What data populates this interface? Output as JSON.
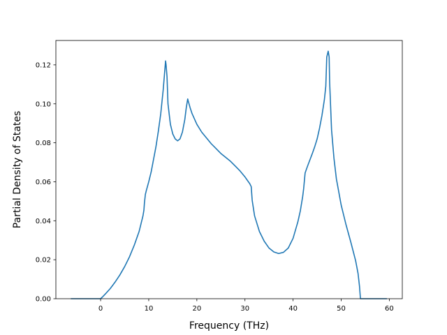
{
  "chart_data": {
    "type": "line",
    "title": "",
    "xlabel": "Frequency (THz)",
    "ylabel": "Partial Density of States",
    "xlim": [
      -9.3,
      62.7
    ],
    "ylim": [
      0.0,
      0.1325
    ],
    "xticks": [
      0,
      10,
      20,
      30,
      40,
      50,
      60
    ],
    "xtick_labels": [
      "0",
      "10",
      "20",
      "30",
      "40",
      "50",
      "60"
    ],
    "yticks": [
      0.0,
      0.02,
      0.04,
      0.06,
      0.08,
      0.1,
      0.12
    ],
    "ytick_labels": [
      "0.00",
      "0.02",
      "0.04",
      "0.06",
      "0.08",
      "0.10",
      "0.12"
    ],
    "grid": false,
    "line_color": "#1f77b4",
    "series": [
      {
        "x": [
          -6.2,
          -2.0,
          0.0,
          0.5,
          1.0,
          2.0,
          3.0,
          4.0,
          5.0,
          6.0,
          7.0,
          7.5,
          8.0,
          8.5,
          8.8,
          9.0,
          9.1,
          9.3,
          9.5,
          10.0,
          10.5,
          11.0,
          11.5,
          12.0,
          12.5,
          13.0,
          13.3,
          13.5,
          13.6,
          13.8,
          14.0,
          14.5,
          15.0,
          15.5,
          16.0,
          16.5,
          17.0,
          17.5,
          17.8,
          18.1,
          18.2,
          18.6,
          19.0,
          20.0,
          21.0,
          22.0,
          23.0,
          24.0,
          25.0,
          26.0,
          27.0,
          28.0,
          29.0,
          30.0,
          31.0,
          31.3,
          31.5,
          32.0,
          33.0,
          34.0,
          35.0,
          36.0,
          37.0,
          38.0,
          39.0,
          40.0,
          41.0,
          41.5,
          42.0,
          42.2,
          42.5,
          43.0,
          44.0,
          44.5,
          45.0,
          45.5,
          46.0,
          46.5,
          46.8,
          47.0,
          47.2,
          47.3,
          47.5,
          47.6,
          48.0,
          48.5,
          49.0,
          50.0,
          51.0,
          52.0,
          53.0,
          53.5,
          53.8,
          54.0,
          54.2,
          55.0,
          57.0,
          59.5
        ],
        "y": [
          0.0,
          0.0,
          0.0,
          0.0012,
          0.0025,
          0.0052,
          0.0085,
          0.0122,
          0.0165,
          0.0215,
          0.0275,
          0.031,
          0.0345,
          0.0395,
          0.0425,
          0.0455,
          0.049,
          0.0535,
          0.0555,
          0.06,
          0.065,
          0.0715,
          0.078,
          0.086,
          0.095,
          0.107,
          0.116,
          0.122,
          0.12,
          0.114,
          0.1,
          0.0895,
          0.0845,
          0.082,
          0.081,
          0.082,
          0.0855,
          0.092,
          0.098,
          0.1025,
          0.1015,
          0.098,
          0.095,
          0.0895,
          0.0855,
          0.0825,
          0.0795,
          0.077,
          0.0745,
          0.0725,
          0.0705,
          0.068,
          0.0655,
          0.0625,
          0.059,
          0.0575,
          0.0505,
          0.0425,
          0.0345,
          0.0295,
          0.026,
          0.024,
          0.0232,
          0.0238,
          0.026,
          0.031,
          0.0395,
          0.045,
          0.0525,
          0.0565,
          0.0645,
          0.068,
          0.0745,
          0.078,
          0.082,
          0.0875,
          0.094,
          0.102,
          0.109,
          0.124,
          0.126,
          0.127,
          0.124,
          0.111,
          0.0865,
          0.072,
          0.0615,
          0.048,
          0.038,
          0.029,
          0.0195,
          0.013,
          0.0065,
          0.0,
          0.0,
          0.0,
          0.0,
          0.0
        ]
      }
    ]
  }
}
